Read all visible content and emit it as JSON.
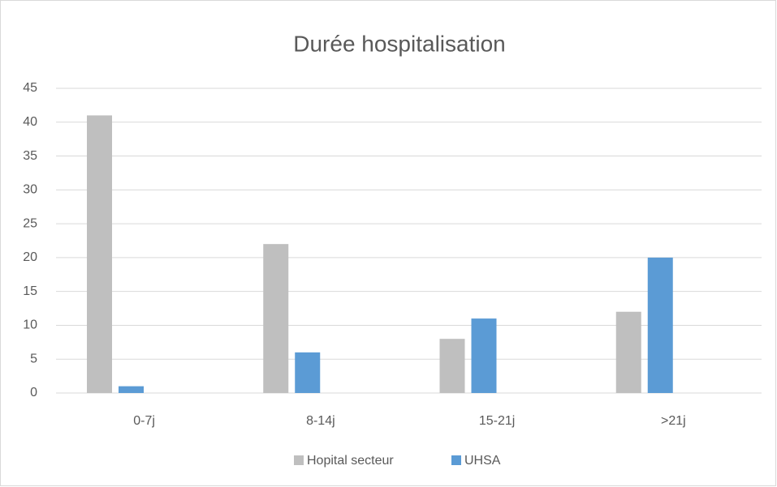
{
  "chart_data": {
    "type": "bar",
    "title": "Durée hospitalisation",
    "categories": [
      "0-7j",
      "8-14j",
      "15-21j",
      ">21j"
    ],
    "series": [
      {
        "name": "Hopital secteur",
        "color": "#bfbfbf",
        "values": [
          41,
          22,
          8,
          12
        ]
      },
      {
        "name": "UHSA",
        "color": "#5b9bd5",
        "values": [
          1,
          6,
          11,
          20
        ]
      }
    ],
    "ylim": [
      0,
      45
    ],
    "yticks": [
      0,
      5,
      10,
      15,
      20,
      25,
      30,
      35,
      40,
      45
    ],
    "grid": true,
    "legend": "bottom"
  }
}
